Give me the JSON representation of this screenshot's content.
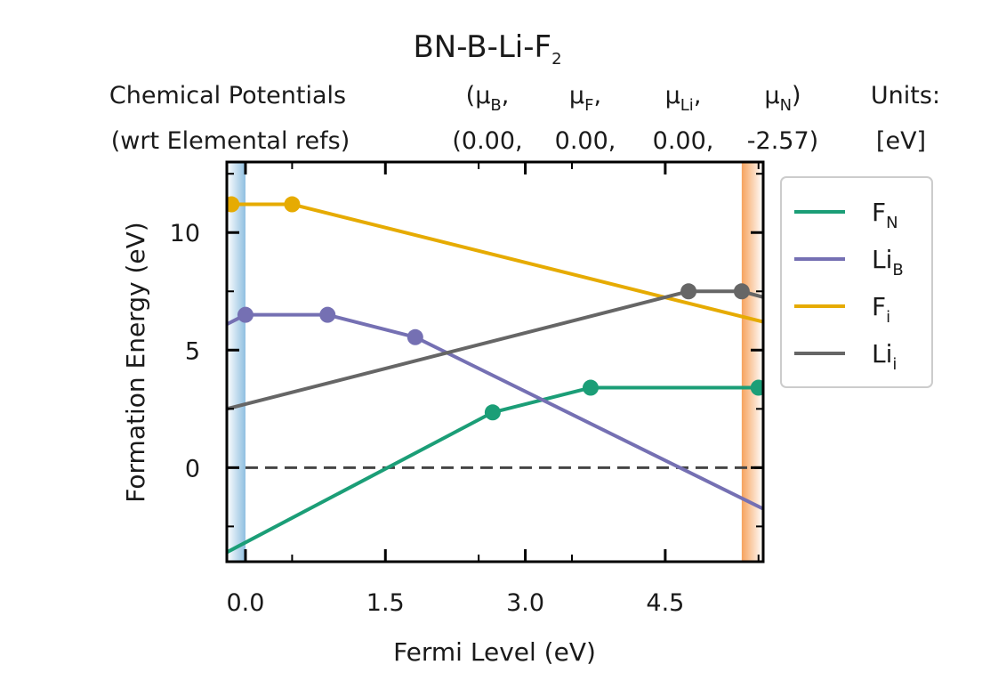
{
  "chart_data": {
    "type": "line",
    "title": "BN-B-Li-F",
    "title_sub": "2",
    "header": {
      "col1_line1": "Chemical Potentials",
      "col1_line2": "(wrt Elemental refs)",
      "mu_cols": [
        {
          "sym": "μ",
          "sub": "B",
          "suffix": ",",
          "value": "(0.00,"
        },
        {
          "sym": "μ",
          "sub": "F",
          "suffix": ",",
          "value": "0.00,"
        },
        {
          "sym": "μ",
          "sub": "Li",
          "suffix": ",",
          "value": "0.00,"
        },
        {
          "sym": "μ",
          "sub": "N",
          "suffix": ")",
          "value": "-2.57)"
        }
      ],
      "mu_open": "(",
      "units_line1": "Units:",
      "units_line2": "[eV]"
    },
    "xlabel": "Fermi Level (eV)",
    "ylabel": "Formation Energy (eV)",
    "xlim": [
      -0.2,
      5.55
    ],
    "ylim": [
      -4.0,
      13.0
    ],
    "xticks": [
      0.0,
      1.5,
      3.0,
      4.5
    ],
    "xtick_labels": [
      "0.0",
      "1.5",
      "3.0",
      "4.5"
    ],
    "yticks": [
      0,
      5,
      10
    ],
    "ytick_labels": [
      "0",
      "5",
      "10"
    ],
    "vbm_region": [
      -0.2,
      0.0
    ],
    "cbm_region": [
      5.32,
      5.55
    ],
    "zero_line": 0,
    "grid": false,
    "legend_position": "outside-right",
    "series": [
      {
        "name": "F",
        "sub": "N",
        "color": "#1b9e77",
        "line": [
          [
            -0.2,
            -3.6
          ],
          [
            2.65,
            2.35
          ],
          [
            3.7,
            3.4
          ],
          [
            5.55,
            3.4
          ]
        ],
        "markers": [
          [
            2.65,
            2.35
          ],
          [
            3.7,
            3.4
          ],
          [
            5.5,
            3.4
          ]
        ]
      },
      {
        "name": "Li",
        "sub": "B",
        "color": "#7570b3",
        "line": [
          [
            -0.2,
            6.1
          ],
          [
            0.0,
            6.5
          ],
          [
            0.88,
            6.5
          ],
          [
            1.82,
            5.55
          ],
          [
            5.55,
            -1.75
          ]
        ],
        "markers": [
          [
            0.0,
            6.5
          ],
          [
            0.88,
            6.5
          ],
          [
            1.82,
            5.55
          ]
        ]
      },
      {
        "name": "F",
        "sub": "i",
        "color": "#e6ab02",
        "line": [
          [
            -0.2,
            11.2
          ],
          [
            0.5,
            11.2
          ],
          [
            5.55,
            6.2
          ]
        ],
        "markers": [
          [
            -0.15,
            11.2
          ],
          [
            0.5,
            11.2
          ]
        ]
      },
      {
        "name": "Li",
        "sub": "i",
        "color": "#666666",
        "line": [
          [
            -0.2,
            2.5
          ],
          [
            4.75,
            7.5
          ],
          [
            5.32,
            7.5
          ],
          [
            5.55,
            7.25
          ]
        ],
        "markers": [
          [
            4.75,
            7.5
          ],
          [
            5.32,
            7.5
          ]
        ]
      }
    ]
  }
}
